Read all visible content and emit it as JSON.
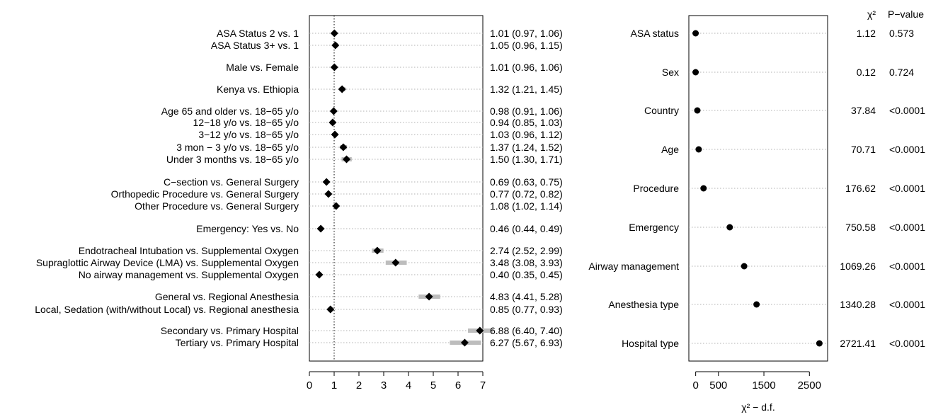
{
  "chart_data": [
    {
      "type": "forest",
      "xlim": [
        0,
        7
      ],
      "xticks": [
        0,
        1,
        2,
        3,
        4,
        5,
        6,
        7
      ],
      "reference_line": 1,
      "rows": [
        {
          "label": "ASA Status 2    vs. 1",
          "est": 1.01,
          "lo": 0.97,
          "hi": 1.06,
          "text": "1.01 (0.97, 1.06)"
        },
        {
          "label": "ASA Status 3+  vs. 1",
          "est": 1.05,
          "lo": 0.96,
          "hi": 1.15,
          "text": "1.05 (0.96, 1.15)"
        },
        {
          "label": "Male vs. Female",
          "est": 1.01,
          "lo": 0.96,
          "hi": 1.06,
          "text": "1.01 (0.96, 1.06)"
        },
        {
          "label": "Kenya vs. Ethiopia",
          "est": 1.32,
          "lo": 1.21,
          "hi": 1.45,
          "text": "1.32 (1.21, 1.45)"
        },
        {
          "label": "Age 65 and older vs. 18−65 y/o",
          "est": 0.98,
          "lo": 0.91,
          "hi": 1.06,
          "text": "0.98 (0.91, 1.06)"
        },
        {
          "label": "12−18 y/o vs. 18−65 y/o",
          "est": 0.94,
          "lo": 0.85,
          "hi": 1.03,
          "text": "0.94 (0.85, 1.03)"
        },
        {
          "label": "3−12 y/o vs. 18−65 y/o",
          "est": 1.03,
          "lo": 0.96,
          "hi": 1.12,
          "text": "1.03 (0.96, 1.12)"
        },
        {
          "label": "3 mon − 3 y/o vs. 18−65 y/o",
          "est": 1.37,
          "lo": 1.24,
          "hi": 1.52,
          "text": "1.37 (1.24, 1.52)"
        },
        {
          "label": "Under 3 months vs. 18−65 y/o",
          "est": 1.5,
          "lo": 1.3,
          "hi": 1.71,
          "text": "1.50 (1.30, 1.71)"
        },
        {
          "label": "C−section vs. General Surgery",
          "est": 0.69,
          "lo": 0.63,
          "hi": 0.75,
          "text": "0.69 (0.63, 0.75)"
        },
        {
          "label": "Orthopedic Procedure vs. General Surgery",
          "est": 0.77,
          "lo": 0.72,
          "hi": 0.82,
          "text": "0.77 (0.72, 0.82)"
        },
        {
          "label": "Other Procedure vs. General Surgery",
          "est": 1.08,
          "lo": 1.02,
          "hi": 1.14,
          "text": "1.08 (1.02, 1.14)"
        },
        {
          "label": "Emergency:  Yes vs. No",
          "est": 0.46,
          "lo": 0.44,
          "hi": 0.49,
          "text": "0.46 (0.44, 0.49)"
        },
        {
          "label": "Endotracheal Intubation vs. Supplemental Oxygen",
          "est": 2.74,
          "lo": 2.52,
          "hi": 2.99,
          "text": "2.74 (2.52, 2.99)"
        },
        {
          "label": "Supraglottic Airway Device (LMA) vs. Supplemental Oxygen",
          "est": 3.48,
          "lo": 3.08,
          "hi": 3.93,
          "text": "3.48 (3.08, 3.93)"
        },
        {
          "label": "No airway management vs. Supplemental Oxygen",
          "est": 0.4,
          "lo": 0.35,
          "hi": 0.45,
          "text": "0.40 (0.35, 0.45)"
        },
        {
          "label": "General vs. Regional Anesthesia",
          "est": 4.83,
          "lo": 4.41,
          "hi": 5.28,
          "text": "4.83 (4.41, 5.28)"
        },
        {
          "label": "Local, Sedation (with/without Local) vs. Regional anesthesia",
          "est": 0.85,
          "lo": 0.77,
          "hi": 0.93,
          "text": "0.85 (0.77, 0.93)"
        },
        {
          "label": "Secondary vs. Primary Hospital",
          "est": 6.88,
          "lo": 6.4,
          "hi": 7.4,
          "text": "6.88 (6.40, 7.40)"
        },
        {
          "label": "Tertiary vs. Primary Hospital",
          "est": 6.27,
          "lo": 5.67,
          "hi": 6.93,
          "text": "6.27 (5.67, 6.93)"
        }
      ]
    },
    {
      "type": "dot",
      "xlabel": "χ² − d.f.",
      "xlim": [
        -150,
        2900
      ],
      "xticks": [
        0,
        500,
        1500,
        2500
      ],
      "col_headers": [
        "χ²",
        "P−value"
      ],
      "rows": [
        {
          "label": "ASA status",
          "value": -0.88,
          "chisq": "1.12",
          "p": "0.573"
        },
        {
          "label": "Sex",
          "value": -0.88,
          "chisq": "0.12",
          "p": "0.724"
        },
        {
          "label": "Country",
          "value": 36.84,
          "chisq": "37.84",
          "p": "<0.0001"
        },
        {
          "label": "Age",
          "value": 66.71,
          "chisq": "70.71",
          "p": "<0.0001"
        },
        {
          "label": "Procedure",
          "value": 173.62,
          "chisq": "176.62",
          "p": "<0.0001"
        },
        {
          "label": "Emergency",
          "value": 749.58,
          "chisq": "750.58",
          "p": "<0.0001"
        },
        {
          "label": "Airway management",
          "value": 1066.26,
          "chisq": "1069.26",
          "p": "<0.0001"
        },
        {
          "label": "Anesthesia type",
          "value": 1338.28,
          "chisq": "1340.28",
          "p": "<0.0001"
        },
        {
          "label": "Hospital type",
          "value": 2719.41,
          "chisq": "2721.41",
          "p": "<0.0001"
        }
      ]
    }
  ]
}
